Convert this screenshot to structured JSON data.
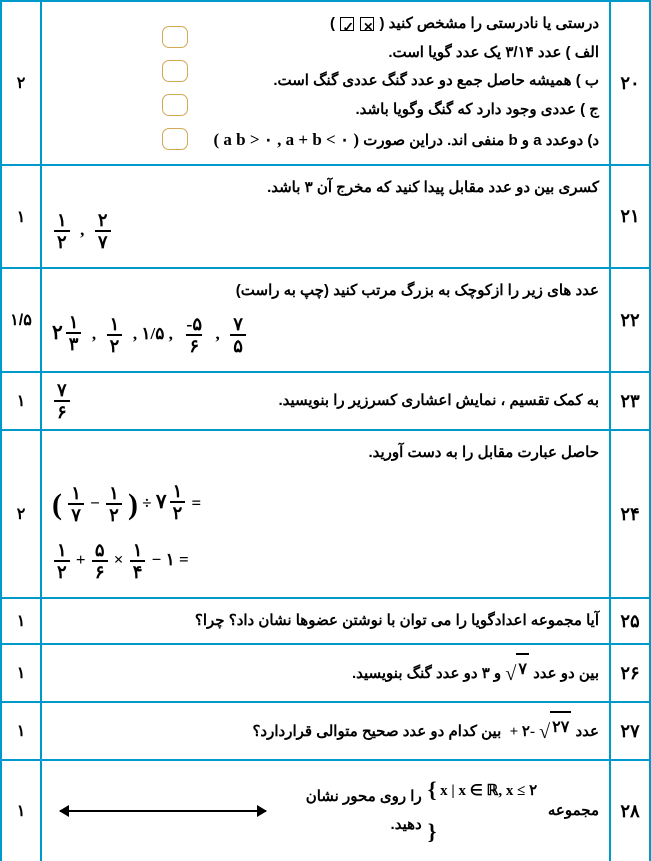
{
  "q20": {
    "num": "۲۰",
    "score": "۲",
    "title": "درستی یا نادرستی را مشخص کنید",
    "a": "الف ) عدد ۳/۱۴ یک عدد گویا است.",
    "b": "ب ) همیشه حاصل جمع دو عدد گنگ عددی گنگ است.",
    "c": "ج ) عددی وجود دارد که گنگ وگویا باشد.",
    "d_pre": "د) دوعدد a و b منفی اند. دراین صورت",
    "d_math": "( a b > ۰  ,  a + b < ۰ )"
  },
  "q21": {
    "num": "۲۱",
    "score": "۱",
    "text": "کسری بین دو عدد مقابل پیدا کنید که مخرج آن ۳ باشد.",
    "f1n": "۱",
    "f1d": "۲",
    "f2n": "۲",
    "f2d": "۷"
  },
  "q22": {
    "num": "۲۲",
    "score": "۱/۵",
    "text": "عدد های زیر را ازکوچک به بزرگ مرتب کنید (چپ به راست)",
    "m1w": "۲",
    "m1n": "۱",
    "m1d": "۳",
    "f2n": "۱",
    "f2d": "۲",
    "t3": "۱/۵",
    "f4n": "-۵",
    "f4d": "۶",
    "f5n": "۷",
    "f5d": "۵"
  },
  "q23": {
    "num": "۲۳",
    "score": "۱",
    "text": "به کمک تقسیم ، نمایش اعشاری کسرزیر را بنویسید.",
    "fn": "۷",
    "fd": "۶"
  },
  "q24": {
    "num": "۲۴",
    "score": "۲",
    "text": "حاصل عبارت مقابل را  به دست آورید.",
    "e1": {
      "a1n": "۱",
      "a1d": "۷",
      "a2n": "۱",
      "a2d": "۲",
      "bw": "۷",
      "bn": "۱",
      "bd": "۲"
    },
    "e2": {
      "t1n": "۱",
      "t1d": "۲",
      "t2n": "۵",
      "t2d": "۶",
      "t3n": "۱",
      "t3d": "۴"
    }
  },
  "q25": {
    "num": "۲۵",
    "score": "۱",
    "text": "آیا مجموعه اعدادگویا را می توان با نوشتن عضوها نشان داد؟ چرا؟"
  },
  "q26": {
    "num": "۲۶",
    "score": "۱",
    "pre": "بین دو عدد",
    "sqrt": "۷",
    "mid": "و ۳ دو عدد گنگ بنویسید."
  },
  "q27": {
    "num": "۲۷",
    "score": "۱",
    "pre": "عدد",
    "sqrt": "۲۷",
    "plus": "+ ۲-",
    "post": "بین کدام دو عدد صحیح متوالی قراردارد؟"
  },
  "q28": {
    "num": "۲۸",
    "score": "۱",
    "pre": "مجموعه",
    "set": "x | x ∈ ℝ,  x ≤ ۲",
    "post": "را روی محور نشان دهید."
  }
}
